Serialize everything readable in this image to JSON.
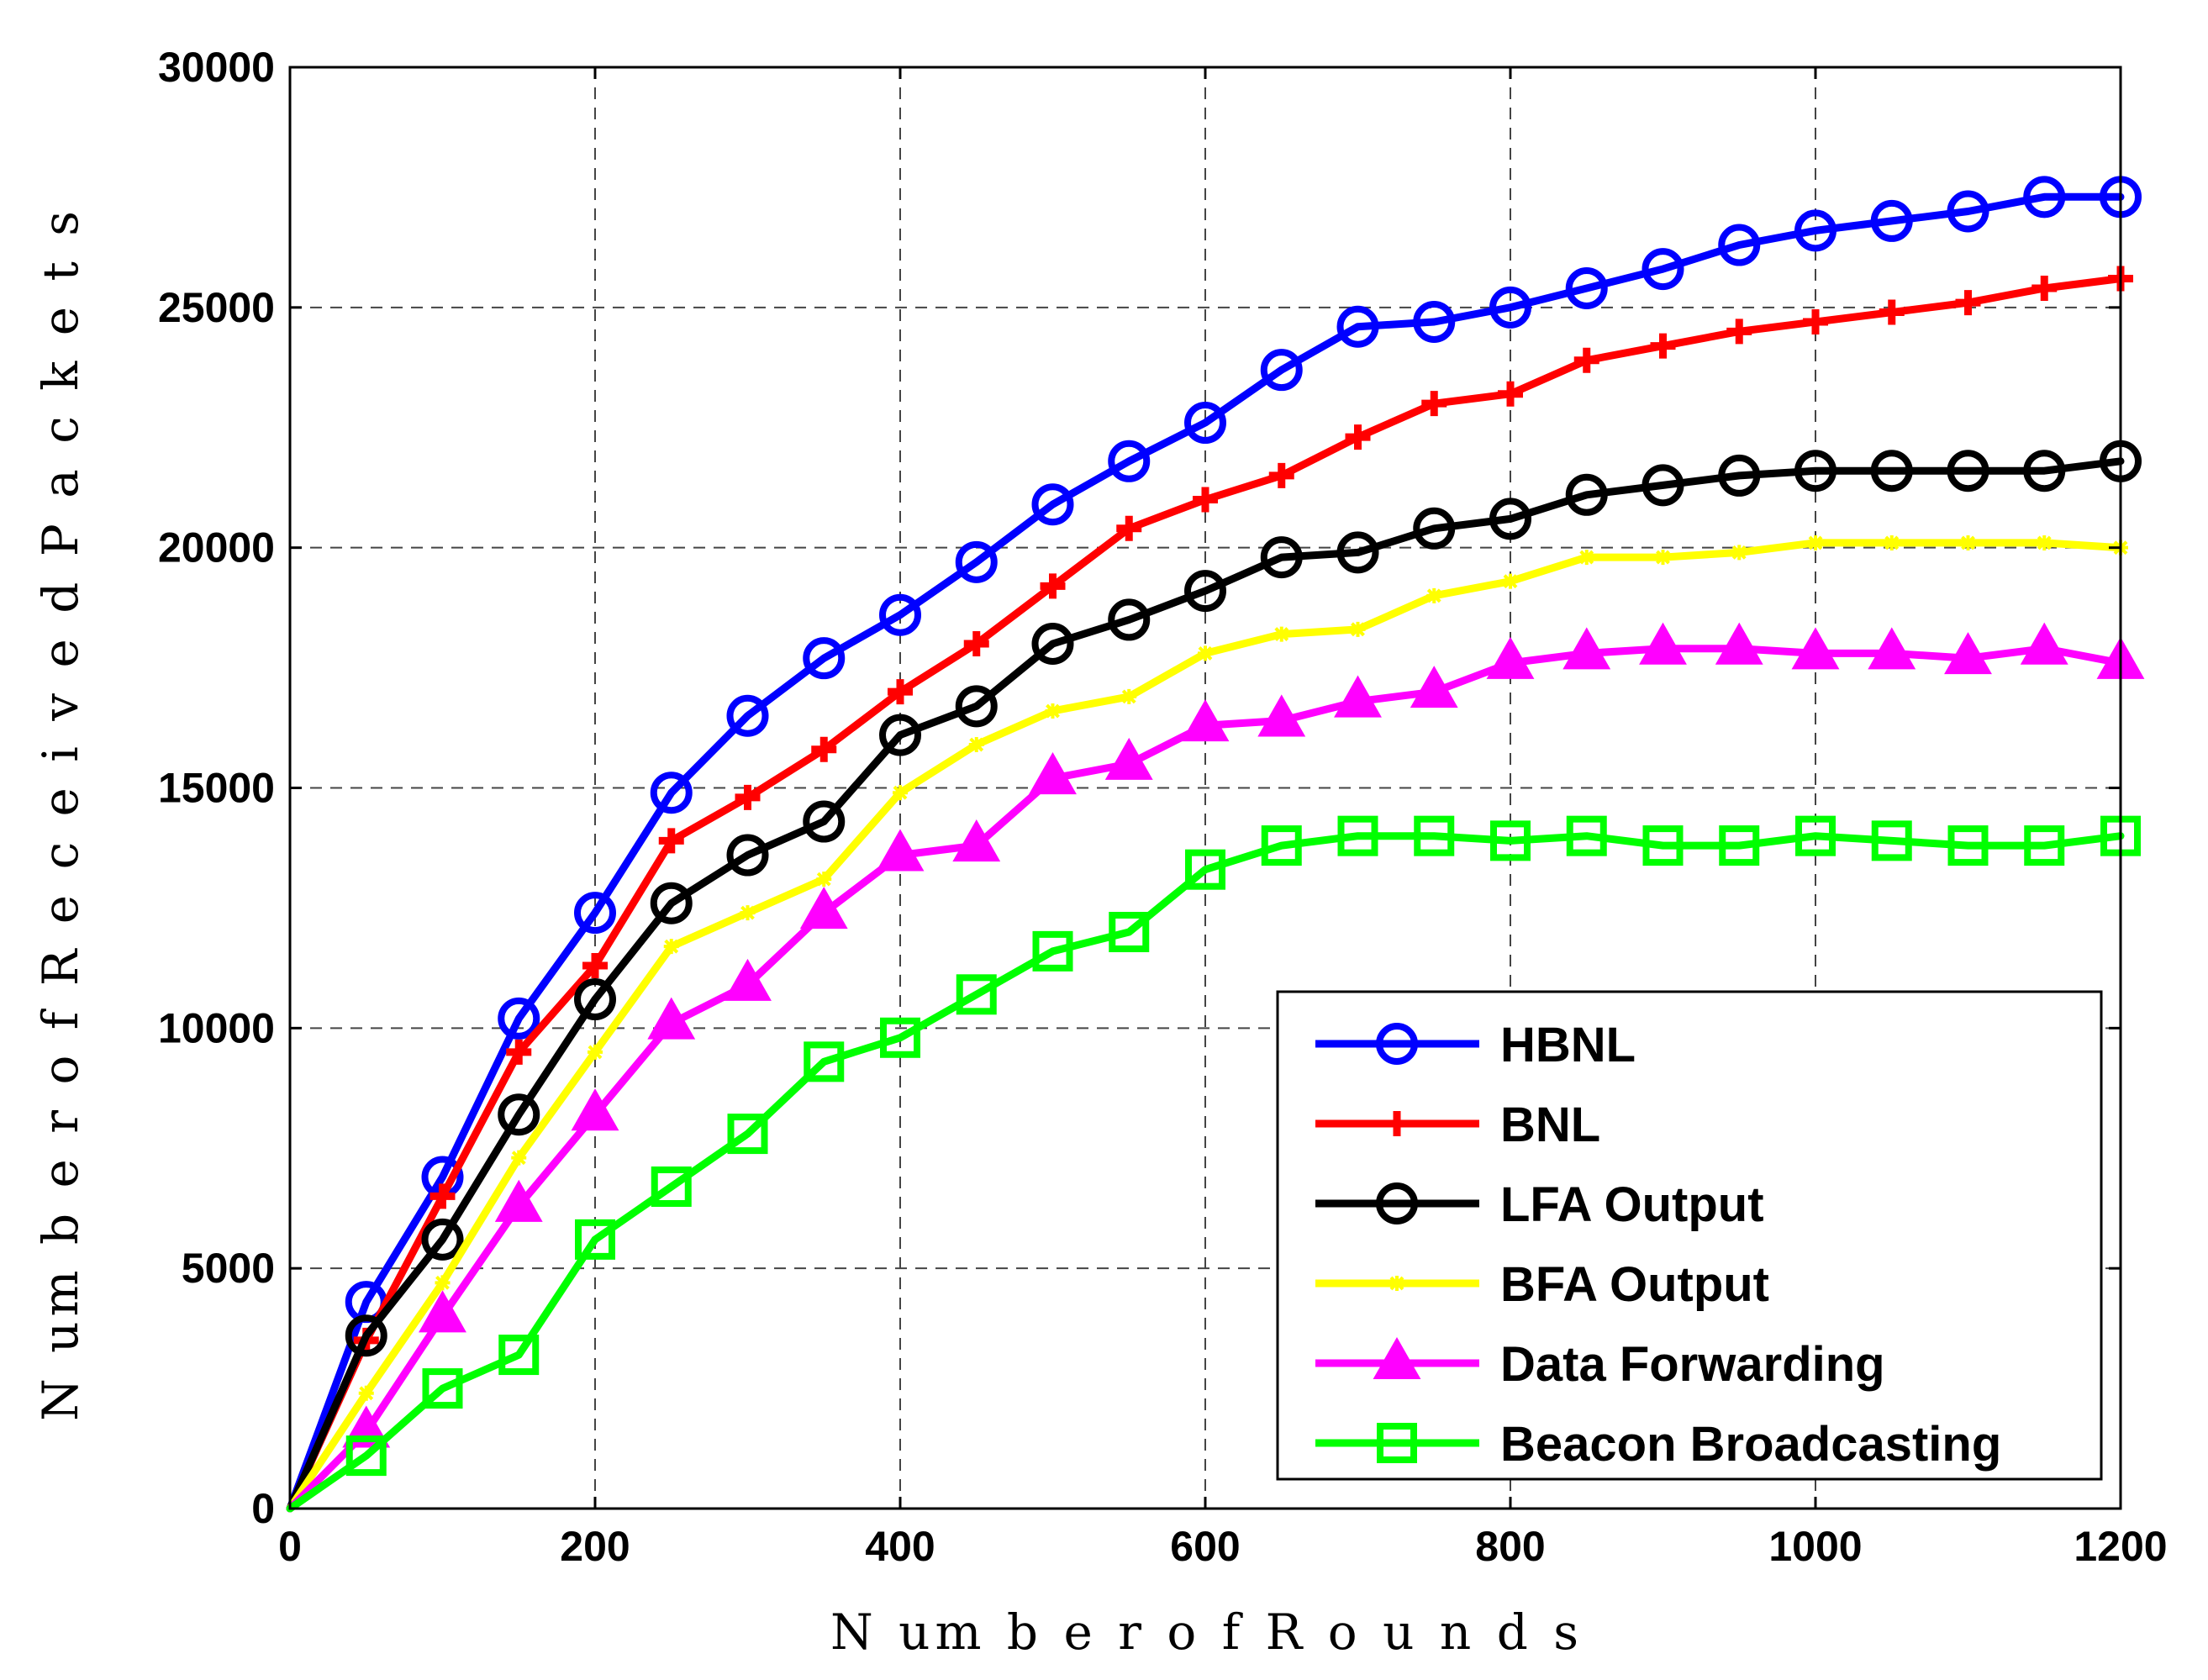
{
  "chart_data": {
    "type": "line",
    "title": "",
    "xlabel": "N um b e r o f R o u n d s",
    "ylabel": "N um b e r o f R e c e i v e d  P a c k e t s",
    "xlim": [
      0,
      1200
    ],
    "ylim": [
      0,
      30000
    ],
    "x_ticks": [
      0,
      200,
      400,
      600,
      800,
      1000,
      1200
    ],
    "y_ticks": [
      0,
      5000,
      10000,
      15000,
      20000,
      25000,
      30000
    ],
    "x_tick_labels": [
      "0",
      "200",
      "400",
      "600",
      "800",
      "1000",
      "1200"
    ],
    "y_tick_labels": [
      "0",
      "5000",
      "10000",
      "15000",
      "20000",
      "25000",
      "30000"
    ],
    "grid": true,
    "legend_position": "bottom-right",
    "x": [
      0,
      50,
      100,
      150,
      200,
      250,
      300,
      350,
      400,
      450,
      500,
      550,
      600,
      650,
      700,
      750,
      800,
      850,
      900,
      950,
      1000,
      1050,
      1100,
      1150,
      1200
    ],
    "series": [
      {
        "name": "HBNL",
        "color": "#0000ff",
        "marker": "circle",
        "values": [
          0,
          4300,
          6900,
          10200,
          12400,
          14900,
          16500,
          17700,
          18600,
          19700,
          20900,
          21800,
          22600,
          23700,
          24600,
          24700,
          25000,
          25400,
          25800,
          26300,
          26600,
          26800,
          27000,
          27300,
          27300
        ]
      },
      {
        "name": "BNL",
        "color": "#ff0000",
        "marker": "plus",
        "values": [
          0,
          3500,
          6500,
          9500,
          11300,
          13900,
          14800,
          15800,
          17000,
          18000,
          19200,
          20400,
          21000,
          21500,
          22300,
          23000,
          23200,
          23900,
          24200,
          24500,
          24700,
          24900,
          25100,
          25400,
          25600
        ]
      },
      {
        "name": "LFA Output",
        "color": "#000000",
        "marker": "circle",
        "values": [
          0,
          3600,
          5600,
          8200,
          10600,
          12600,
          13600,
          14300,
          16100,
          16700,
          18000,
          18500,
          19100,
          19800,
          19900,
          20400,
          20600,
          21100,
          21300,
          21500,
          21600,
          21600,
          21600,
          21600,
          21800
        ]
      },
      {
        "name": "BFA Output",
        "color": "#ffff00",
        "marker": "star",
        "values": [
          0,
          2400,
          4700,
          7300,
          9500,
          11700,
          12400,
          13100,
          14900,
          15900,
          16600,
          16900,
          17800,
          18200,
          18300,
          19000,
          19300,
          19800,
          19800,
          19900,
          20100,
          20100,
          20100,
          20100,
          20000
        ]
      },
      {
        "name": "Data Forwarding",
        "color": "#ff00ff",
        "marker": "triangle",
        "values": [
          0,
          1600,
          4000,
          6300,
          8200,
          10100,
          10900,
          12400,
          13600,
          13800,
          15200,
          15500,
          16300,
          16400,
          16800,
          17000,
          17600,
          17800,
          17900,
          17900,
          17800,
          17800,
          17700,
          17900,
          17600
        ]
      },
      {
        "name": "Beacon Broadcasting",
        "color": "#00ff00",
        "marker": "square",
        "values": [
          0,
          1100,
          2500,
          3200,
          5600,
          6700,
          7800,
          9300,
          9800,
          10700,
          11600,
          12000,
          13300,
          13800,
          14000,
          14000,
          13900,
          14000,
          13800,
          13800,
          14000,
          13900,
          13800,
          13800,
          14000
        ]
      }
    ]
  }
}
